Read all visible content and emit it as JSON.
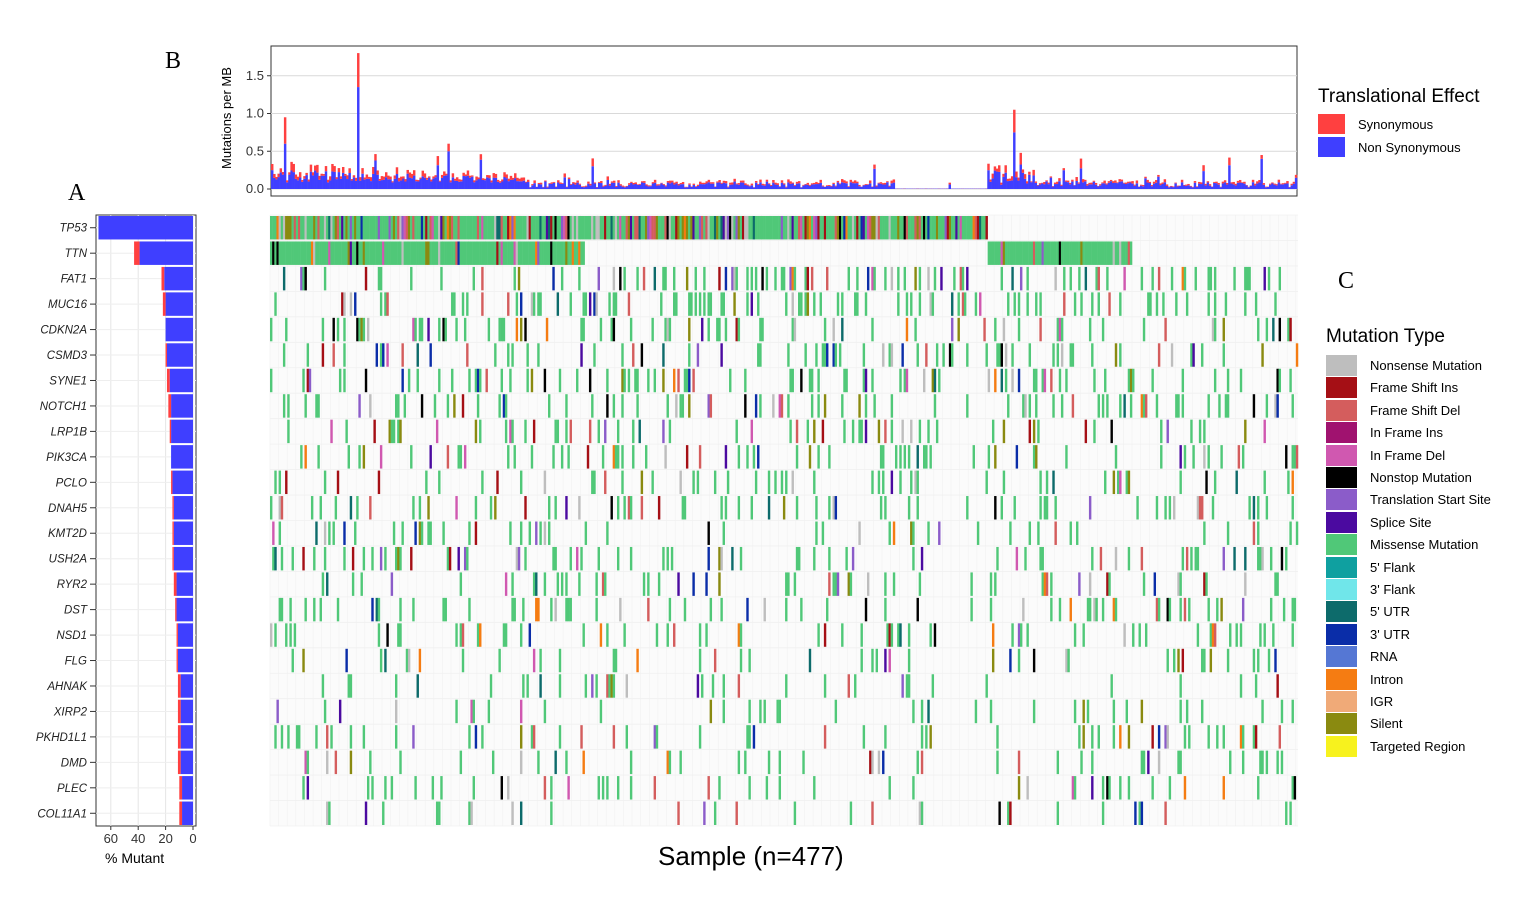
{
  "panel_labels": {
    "a": "A",
    "b": "B",
    "c": "C"
  },
  "chart_data": [
    {
      "id": "tmb",
      "type": "bar",
      "ylabel": "Mutations per MB",
      "yticks": [
        "0.0",
        "0.5",
        "1.0",
        "1.5"
      ],
      "ylim": [
        0,
        1.85
      ],
      "grid": true,
      "legend": {
        "title": "Translational Effect",
        "placement": "right",
        "items": [
          {
            "label": "Synonymous",
            "color": "#ff4040"
          },
          {
            "label": "Non Synonymous",
            "color": "#3f3fff"
          }
        ]
      },
      "peaks": [
        {
          "sample": 6,
          "non_synonymous": 0.6,
          "synonymous": 0.35
        },
        {
          "sample": 40,
          "non_synonymous": 1.35,
          "synonymous": 0.45
        },
        {
          "sample": 82,
          "non_synonymous": 0.5,
          "synonymous": 0.1
        },
        {
          "sample": 345,
          "non_synonymous": 0.75,
          "synonymous": 0.3
        },
        {
          "sample": 460,
          "non_synonymous": 0.4,
          "synonymous": 0.05
        }
      ]
    },
    {
      "id": "percent_mutant",
      "type": "bar",
      "orientation": "horizontal",
      "xlabel": "% Mutant",
      "xticks": [
        "60",
        "40",
        "20",
        "0"
      ],
      "xlim": [
        70,
        0
      ],
      "categories": [
        "TP53",
        "TTN",
        "FAT1",
        "MUC16",
        "CDKN2A",
        "CSMD3",
        "SYNE1",
        "NOTCH1",
        "LRP1B",
        "PIK3CA",
        "PCLO",
        "DNAH5",
        "KMT2D",
        "USH2A",
        "RYR2",
        "DST",
        "NSD1",
        "FLG",
        "AHNAK",
        "XIRP2",
        "PKHD1L1",
        "DMD",
        "PLEC",
        "COL11A1"
      ],
      "series": [
        {
          "name": "Non Synonymous",
          "color": "#3f3fff",
          "values": [
            69,
            39,
            21,
            20,
            20,
            19,
            17,
            16,
            16,
            16,
            15,
            14,
            14,
            14,
            12,
            12,
            11,
            11,
            9,
            9,
            9,
            9,
            8,
            8
          ]
        },
        {
          "name": "Synonymous",
          "color": "#ff4040",
          "values": [
            0,
            4,
            2,
            2,
            0,
            1,
            2,
            2,
            1,
            0,
            1,
            1,
            1,
            1,
            2,
            1,
            1,
            1,
            2,
            2,
            2,
            2,
            2,
            2
          ]
        }
      ]
    },
    {
      "id": "oncoplot",
      "type": "heatmap",
      "xlabel": "Sample (n=477)",
      "n_samples": 477,
      "rows": [
        "TP53",
        "TTN",
        "FAT1",
        "MUC16",
        "CDKN2A",
        "CSMD3",
        "SYNE1",
        "NOTCH1",
        "LRP1B",
        "PIK3CA",
        "PCLO",
        "DNAH5",
        "KMT2D",
        "USH2A",
        "RYR2",
        "DST",
        "NSD1",
        "FLG",
        "AHNAK",
        "XIRP2",
        "PKHD1L1",
        "DMD",
        "PLEC",
        "COL11A1"
      ],
      "mutation_fraction": [
        0.69,
        0.43,
        0.23,
        0.22,
        0.2,
        0.2,
        0.19,
        0.18,
        0.17,
        0.16,
        0.16,
        0.15,
        0.15,
        0.15,
        0.14,
        0.13,
        0.12,
        0.12,
        0.11,
        0.11,
        0.11,
        0.11,
        0.1,
        0.1
      ]
    }
  ],
  "mutation_legend": {
    "title": "Mutation Type",
    "items": [
      {
        "label": "Nonsense Mutation",
        "color": "#bebebe"
      },
      {
        "label": "Frame Shift Ins",
        "color": "#a50f15"
      },
      {
        "label": "Frame Shift Del",
        "color": "#d45d5d"
      },
      {
        "label": "In Frame Ins",
        "color": "#a0126f"
      },
      {
        "label": "In Frame Del",
        "color": "#d058b0"
      },
      {
        "label": "Nonstop Mutation",
        "color": "#000000"
      },
      {
        "label": "Translation Start Site",
        "color": "#8b5cc9"
      },
      {
        "label": "Splice Site",
        "color": "#4b0aa0"
      },
      {
        "label": "Missense Mutation",
        "color": "#50c878"
      },
      {
        "label": "5' Flank",
        "color": "#0fa0a0"
      },
      {
        "label": "3' Flank",
        "color": "#70e6ea"
      },
      {
        "label": "5' UTR",
        "color": "#0d6b6b"
      },
      {
        "label": "3' UTR",
        "color": "#0a2da8"
      },
      {
        "label": "RNA",
        "color": "#5577d4"
      },
      {
        "label": "Intron",
        "color": "#f57c12"
      },
      {
        "label": "IGR",
        "color": "#f0aa78"
      },
      {
        "label": "Silent",
        "color": "#8a8a10"
      },
      {
        "label": "Targeted Region",
        "color": "#f7f21e"
      }
    ]
  }
}
